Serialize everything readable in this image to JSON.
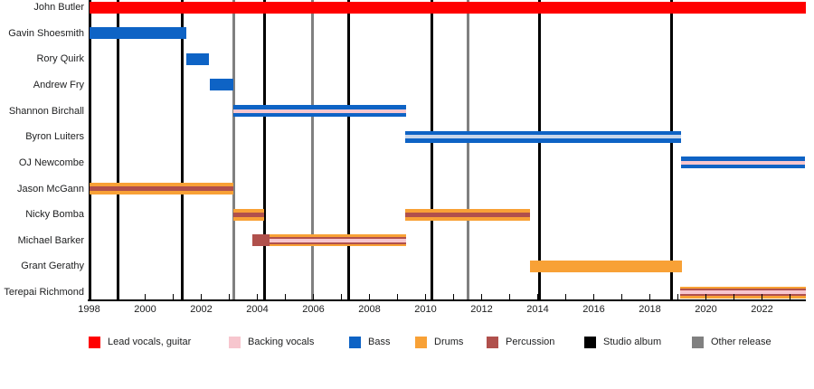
{
  "chart_data": {
    "type": "gantt-timeline",
    "title": "",
    "x_axis": {
      "unit": "year",
      "min": 1998,
      "max": 2023.55,
      "tick_labels": [
        "1998",
        "2000",
        "2002",
        "2004",
        "2006",
        "2008",
        "2010",
        "2012",
        "2014",
        "2016",
        "2018",
        "2020",
        "2022"
      ],
      "tick_years": [
        1998,
        2000,
        2002,
        2004,
        2006,
        2008,
        2010,
        2012,
        2014,
        2016,
        2018,
        2020,
        2022
      ],
      "minor_tick_step": 1,
      "grid": "off"
    },
    "members": [
      {
        "name": "John Butler",
        "segments": [
          {
            "start": 1998.0,
            "end": 2023.55,
            "style": "lead"
          }
        ]
      },
      {
        "name": "Gavin Shoesmith",
        "segments": [
          {
            "start": 1998.0,
            "end": 2001.47,
            "style": "bass"
          }
        ]
      },
      {
        "name": "Rory Quirk",
        "segments": [
          {
            "start": 2001.47,
            "end": 2002.29,
            "style": "bass"
          }
        ]
      },
      {
        "name": "Andrew Fry",
        "segments": [
          {
            "start": 2002.29,
            "end": 2003.15,
            "style": "bass"
          }
        ]
      },
      {
        "name": "Shannon Birchall",
        "segments": [
          {
            "start": 2003.15,
            "end": 2009.31,
            "style": "bass_backing"
          }
        ]
      },
      {
        "name": "Byron Luiters",
        "segments": [
          {
            "start": 2009.27,
            "end": 2019.11,
            "style": "bass_light"
          }
        ]
      },
      {
        "name": "OJ Newcombe",
        "segments": [
          {
            "start": 2019.11,
            "end": 2023.55,
            "style": "bass_backing"
          }
        ]
      },
      {
        "name": "Jason McGann",
        "segments": [
          {
            "start": 1998.0,
            "end": 2003.15,
            "style": "drums_perc"
          }
        ]
      },
      {
        "name": "Nicky Bomba",
        "segments": [
          {
            "start": 2003.15,
            "end": 2004.24,
            "style": "drums_perc"
          },
          {
            "start": 2009.27,
            "end": 2013.72,
            "style": "drums_perc"
          }
        ]
      },
      {
        "name": "Michael Barker",
        "segments": [
          {
            "start": 2003.82,
            "end": 2004.43,
            "style": "perc"
          },
          {
            "start": 2004.43,
            "end": 2009.31,
            "style": "drums_backing_perc"
          }
        ]
      },
      {
        "name": "Grant Gerathy",
        "segments": [
          {
            "start": 2013.72,
            "end": 2019.15,
            "style": "drums"
          }
        ]
      },
      {
        "name": "Terepai Richmond",
        "segments": [
          {
            "start": 2019.08,
            "end": 2023.55,
            "style": "drums_backing_perc"
          }
        ]
      }
    ],
    "studio_album_years": [
      1998.03,
      1999.02,
      2001.33,
      2004.25,
      2007.26,
      2010.24,
      2014.06,
      2018.77
    ],
    "other_release_years": [
      2003.15,
      2005.95,
      2011.53
    ]
  },
  "legend": {
    "items": [
      {
        "label": "Lead vocals, guitar",
        "color_key": "lead"
      },
      {
        "label": "Backing vocals",
        "color_key": "backing"
      },
      {
        "label": "Bass",
        "color_key": "bass"
      },
      {
        "label": "Drums",
        "color_key": "drums"
      },
      {
        "label": "Percussion",
        "color_key": "percussion"
      },
      {
        "label": "Studio album",
        "color_key": "album"
      },
      {
        "label": "Other release",
        "color_key": "other"
      }
    ]
  },
  "colors": {
    "lead": "#ff0000",
    "backing": "#f7c6ce",
    "bass": "#0e63c5",
    "bass_light": "#c9d6ea",
    "drums": "#f8a136",
    "percussion": "#b0504c",
    "album": "#000000",
    "other": "#808080",
    "text": "#202122"
  }
}
